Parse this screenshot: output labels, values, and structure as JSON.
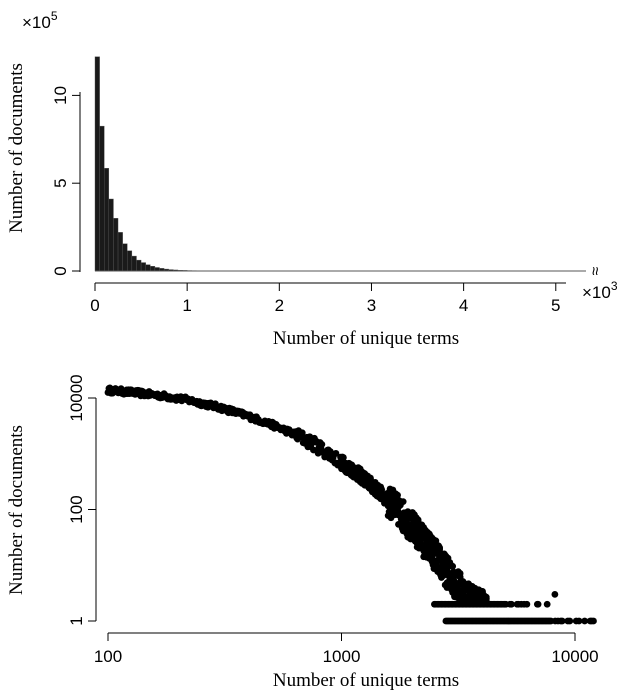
{
  "chart_data": [
    {
      "type": "bar",
      "title": "",
      "xlabel": "Number of unique terms",
      "ylabel": "Number of documents",
      "x_multiplier": "×10",
      "x_multiplier_exp": "3",
      "y_multiplier": "×10",
      "y_multiplier_exp": "5",
      "axis_break": "≈",
      "xlim": [
        0,
        5.1
      ],
      "ylim": [
        0,
        12.3
      ],
      "x_ticks": [
        "0",
        "1",
        "2",
        "3",
        "4",
        "5"
      ],
      "y_ticks": [
        "0",
        "5",
        "10"
      ],
      "bin_width": 0.05,
      "bin_start": 0,
      "values": [
        12.2,
        8.25,
        5.85,
        4.1,
        3.0,
        2.2,
        1.55,
        1.15,
        0.85,
        0.62,
        0.48,
        0.36,
        0.27,
        0.2,
        0.15,
        0.11,
        0.08,
        0.06,
        0.045,
        0.035,
        0.025,
        0.02,
        0.015,
        0.01,
        0.008,
        0.006,
        0.005,
        0.004,
        0.003,
        0.002
      ],
      "color": "#1a1a1a"
    },
    {
      "type": "scatter",
      "title": "",
      "xlabel": "Number of unique terms",
      "ylabel": "Number of documents",
      "x_scale": "log",
      "y_scale": "log",
      "xlim": [
        100,
        12000
      ],
      "ylim": [
        1,
        15000
      ],
      "x_ticks": [
        "100",
        "1000",
        "10000"
      ],
      "y_ticks": [
        "1",
        "100",
        "10000"
      ],
      "trend_points": [
        [
          100,
          13800
        ],
        [
          130,
          12500
        ],
        [
          170,
          11000
        ],
        [
          220,
          9200
        ],
        [
          300,
          6800
        ],
        [
          400,
          4700
        ],
        [
          500,
          3350
        ],
        [
          600,
          2450
        ],
        [
          700,
          1800
        ],
        [
          800,
          1320
        ],
        [
          900,
          960
        ],
        [
          1000,
          700
        ],
        [
          1200,
          410
        ],
        [
          1400,
          235
        ],
        [
          1600,
          140
        ],
        [
          1800,
          84
        ],
        [
          2000,
          50
        ],
        [
          2200,
          30
        ],
        [
          2500,
          16
        ],
        [
          2800,
          8
        ],
        [
          3200,
          4
        ],
        [
          3600,
          2.4
        ],
        [
          4200,
          1.6
        ]
      ],
      "one_count_range": [
        2800,
        12000
      ],
      "two_count_range": [
        2500,
        7000
      ],
      "color": "#000000"
    }
  ]
}
